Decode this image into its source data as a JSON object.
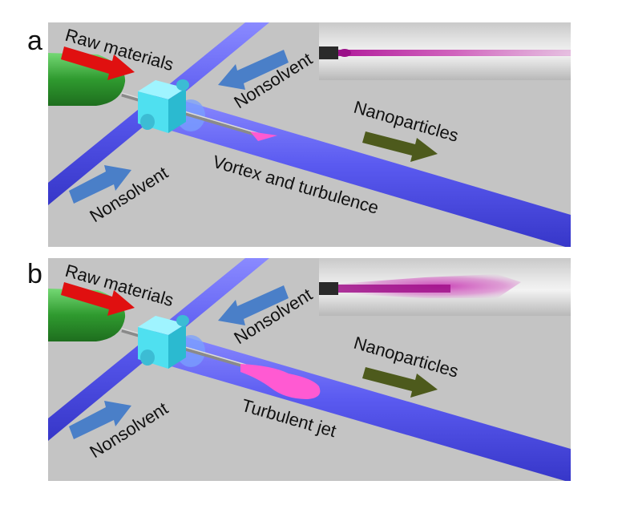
{
  "panels": [
    {
      "letter": "a",
      "labels": {
        "raw_materials": "Raw materials",
        "nonsolvent_top": "Nonsolvent",
        "nonsolvent_bottom": "Nonsolvent",
        "nanoparticles": "Nanoparticles",
        "flow_regime": "Vortex and turbulence"
      },
      "inset": "narrow magenta stream photo"
    },
    {
      "letter": "b",
      "labels": {
        "raw_materials": "Raw materials",
        "nonsolvent_top": "Nonsolvent",
        "nonsolvent_bottom": "Nonsolvent",
        "nanoparticles": "Nanoparticles",
        "flow_regime": "Turbulent jet"
      },
      "inset": "widening magenta plume photo"
    }
  ],
  "colors": {
    "panel_bg": "#c4c4c4",
    "tube": "#5a5af0",
    "needle_body": "#2f9a2f",
    "mixer": "#4fe0f0",
    "raw_arrow": "#e01010",
    "nonsolvent_arrow": "#4a7fc8",
    "nanoparticle_arrow": "#4d5a1c",
    "jet": "#ff5ad2"
  }
}
